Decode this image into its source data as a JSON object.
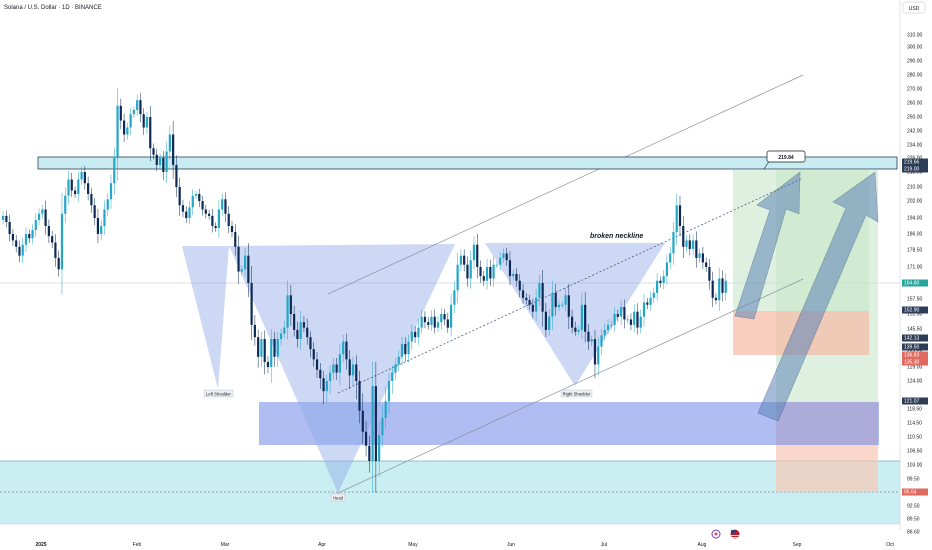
{
  "header": {
    "title": "Solana / U.S. Dollar · 1D · BINANCE",
    "currency": "USD"
  },
  "chart_data": {
    "type": "candlestick",
    "title": "Solana / U.S. Dollar · 1D · BINANCE",
    "currency": "USD",
    "ylim": [
      86.6,
      322
    ],
    "y_ticks": [
      "310.00",
      "300.00",
      "290.00",
      "280.00",
      "270.00",
      "260.00",
      "250.00",
      "242.00",
      "234.00",
      "226.00",
      "218.00",
      "210.00",
      "202.00",
      "194.00",
      "186.00",
      "178.50",
      "171.00",
      "164.00",
      "157.50",
      "151.00",
      "145.50",
      "140.00",
      "134.50",
      "129.00",
      "124.00",
      "118.50",
      "114.50",
      "110.50",
      "106.50",
      "103.00",
      "99.50",
      "96.00",
      "92.50",
      "89.50",
      "86.60"
    ],
    "x_ticks": [
      "2025",
      "Feb",
      "Mar",
      "Apr",
      "May",
      "Jun",
      "Jul",
      "Aug",
      "Sep",
      "Oct"
    ],
    "close": [
      195,
      192,
      186,
      183,
      180,
      176,
      181,
      186,
      184,
      188,
      193,
      196,
      198,
      190,
      185,
      182,
      175,
      170,
      196,
      205,
      214,
      208,
      206,
      214,
      218,
      212,
      206,
      200,
      194,
      186,
      190,
      198,
      203,
      212,
      226,
      258,
      248,
      240,
      244,
      252,
      255,
      262,
      252,
      244,
      250,
      232,
      228,
      222,
      226,
      218,
      230,
      240,
      222,
      210,
      200,
      197,
      194,
      199,
      205,
      206,
      202,
      198,
      196,
      195,
      190,
      189,
      198,
      203,
      196,
      190,
      187,
      180,
      169,
      170,
      176,
      164,
      147,
      141,
      133,
      140,
      131,
      129,
      140,
      133,
      140,
      143,
      146,
      159,
      151,
      145,
      140,
      148,
      146,
      141,
      136,
      132,
      128,
      125,
      122,
      124,
      127,
      130,
      127,
      134,
      139,
      132,
      126,
      130,
      124,
      118,
      112,
      108,
      104,
      123,
      104,
      111,
      116,
      120,
      124,
      127,
      130,
      133,
      138,
      134,
      139,
      144,
      141,
      146,
      150,
      148,
      147,
      150,
      146,
      148,
      151,
      149,
      146,
      155,
      161,
      172,
      176,
      172,
      166,
      174,
      181,
      171,
      167,
      165,
      171,
      166,
      172,
      172,
      175,
      177,
      174,
      167,
      168,
      165,
      161,
      158,
      157,
      155,
      152,
      158,
      164,
      152,
      145,
      150,
      160,
      154,
      155,
      155,
      159,
      150,
      146,
      144,
      145,
      155,
      144,
      139,
      140,
      130,
      137,
      142,
      145,
      147,
      147,
      151,
      150,
      154,
      149,
      149,
      147,
      152,
      146,
      150,
      156,
      155,
      158,
      160,
      165,
      164,
      167,
      173,
      177,
      187,
      200,
      190,
      180,
      183,
      179,
      183,
      175,
      177,
      173,
      171,
      165,
      158,
      157,
      166,
      160,
      165
    ],
    "annotations": [
      "219.84",
      "broken neckline",
      "Left Shoulder",
      "Head",
      "Right Shoulder"
    ],
    "price_labels": [
      "219.66",
      "219.00",
      "164.80",
      "152.90",
      "142.13",
      "139.50",
      "136.83",
      "135.30",
      "121.07",
      "95.64"
    ]
  },
  "footer_icons": [
    "refresh-icon",
    "flag-icon"
  ]
}
